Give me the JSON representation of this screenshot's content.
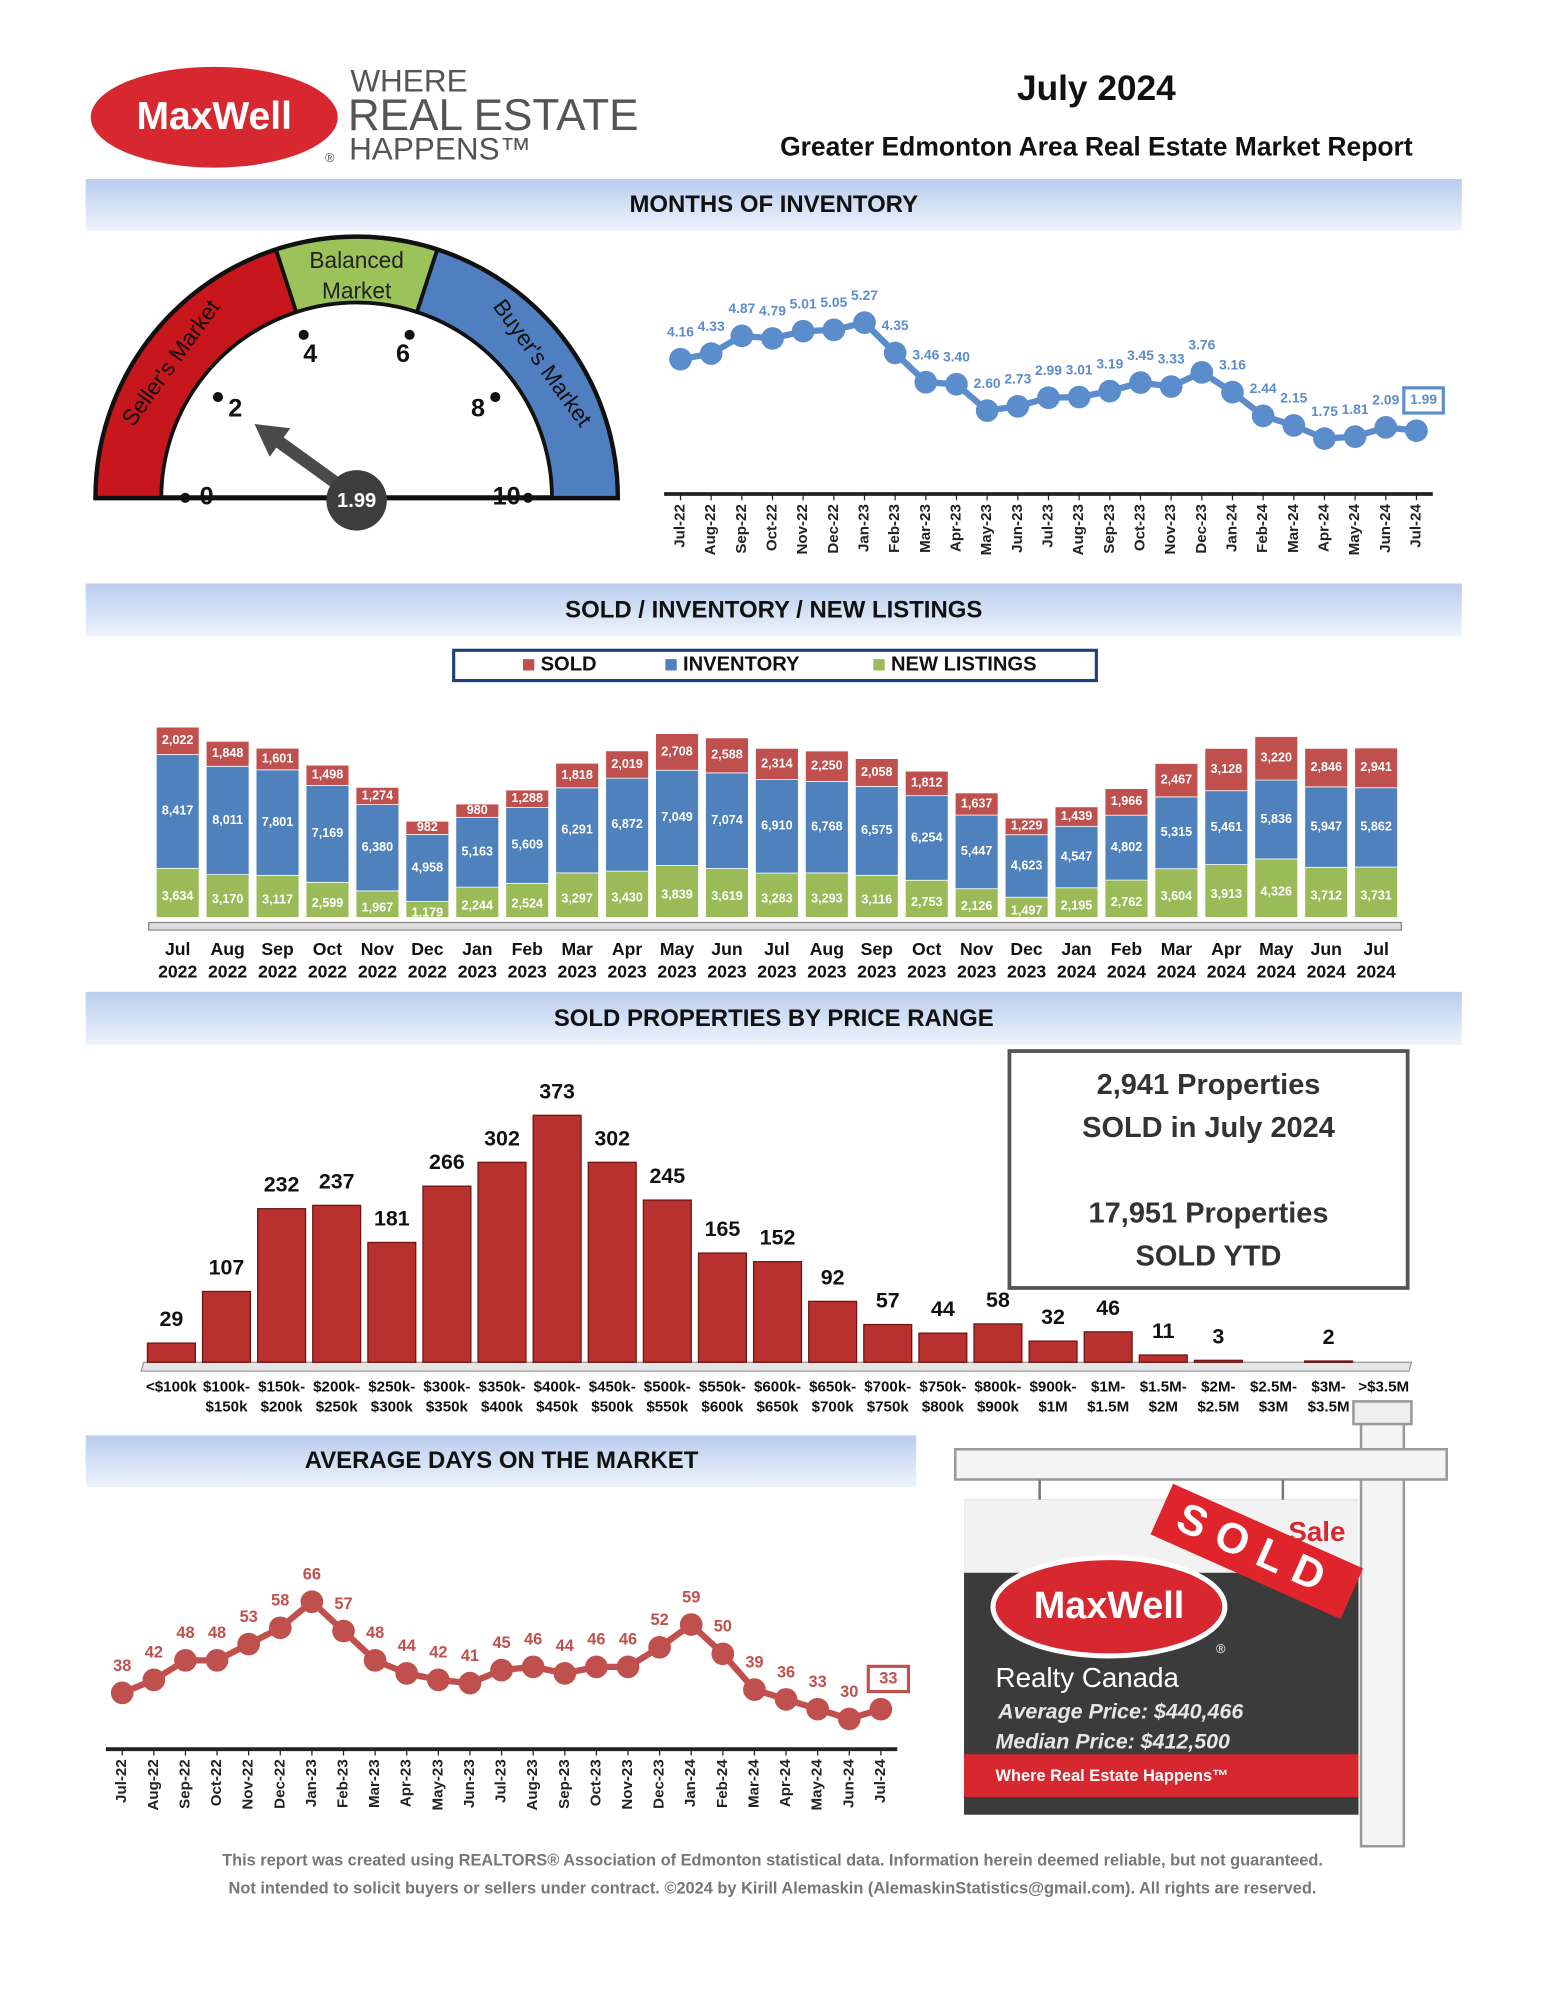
{
  "logo": {
    "brand": "MaxWell",
    "registered": "®",
    "line1": "WHERE",
    "line2": "REAL ESTATE",
    "line3": "HAPPENS™"
  },
  "header": {
    "date": "July 2024",
    "subtitle": "Greater Edmonton Area Real Estate Market Report"
  },
  "chart_data": [
    {
      "type": "gauge",
      "range": [
        0,
        10
      ],
      "value": 1.99,
      "ticks": [
        0,
        2,
        4,
        6,
        8,
        10
      ],
      "bands": [
        {
          "name": [
            "Seller's Market"
          ],
          "from": 0,
          "to": 4,
          "color": "#c8161d"
        },
        {
          "name": [
            "Balanced",
            "Market"
          ],
          "from": 4,
          "to": 6,
          "color": "#9bc35a"
        },
        {
          "name": [
            "Buyer's Market"
          ],
          "from": 6,
          "to": 10,
          "color": "#4f7fc1"
        }
      ]
    },
    {
      "type": "line",
      "title": "MONTHS OF INVENTORY",
      "color": "#5b8ccc",
      "highlight_last": true,
      "categories": [
        "Jul-22",
        "Aug-22",
        "Sep-22",
        "Oct-22",
        "Nov-22",
        "Dec-22",
        "Jan-23",
        "Feb-23",
        "Mar-23",
        "Apr-23",
        "May-23",
        "Jun-23",
        "Jul-23",
        "Aug-23",
        "Sep-23",
        "Oct-23",
        "Nov-23",
        "Dec-23",
        "Jan-24",
        "Feb-24",
        "Mar-24",
        "Apr-24",
        "May-24",
        "Jun-24",
        "Jul-24"
      ],
      "values": [
        4.16,
        4.33,
        4.87,
        4.79,
        5.01,
        5.05,
        5.27,
        4.35,
        3.46,
        3.4,
        2.6,
        2.73,
        2.99,
        3.01,
        3.19,
        3.45,
        3.33,
        3.76,
        3.16,
        2.44,
        2.15,
        1.75,
        1.81,
        2.09,
        1.99
      ],
      "value_labels": [
        "4.16",
        "4.33",
        "4.87",
        "4.79",
        "5.01",
        "5.05",
        "5.27",
        "4.35",
        "3.46",
        "3.40",
        "2.60",
        "2.73",
        "2.99",
        "3.01",
        "3.19",
        "3.45",
        "3.33",
        "3.76",
        "3.16",
        "2.44",
        "2.15",
        "1.75",
        "1.81",
        "2.09",
        "1.99"
      ]
    },
    {
      "type": "stacked_bar",
      "title": "SOLD / INVENTORY / NEW LISTINGS",
      "categories": [
        [
          "Jul",
          "2022"
        ],
        [
          "Aug",
          "2022"
        ],
        [
          "Sep",
          "2022"
        ],
        [
          "Oct",
          "2022"
        ],
        [
          "Nov",
          "2022"
        ],
        [
          "Dec",
          "2022"
        ],
        [
          "Jan",
          "2023"
        ],
        [
          "Feb",
          "2023"
        ],
        [
          "Mar",
          "2023"
        ],
        [
          "Apr",
          "2023"
        ],
        [
          "May",
          "2023"
        ],
        [
          "Jun",
          "2023"
        ],
        [
          "Jul",
          "2023"
        ],
        [
          "Aug",
          "2023"
        ],
        [
          "Sep",
          "2023"
        ],
        [
          "Oct",
          "2023"
        ],
        [
          "Nov",
          "2023"
        ],
        [
          "Dec",
          "2023"
        ],
        [
          "Jan",
          "2024"
        ],
        [
          "Feb",
          "2024"
        ],
        [
          "Mar",
          "2024"
        ],
        [
          "Apr",
          "2024"
        ],
        [
          "May",
          "2024"
        ],
        [
          "Jun",
          "2024"
        ],
        [
          "Jul",
          "2024"
        ]
      ],
      "series": [
        {
          "name": "SOLD",
          "color": "#c0504d",
          "values": [
            2022,
            1848,
            1601,
            1498,
            1274,
            982,
            980,
            1288,
            1818,
            2019,
            2708,
            2588,
            2314,
            2250,
            2058,
            1812,
            1637,
            1229,
            1439,
            1966,
            2467,
            3128,
            3220,
            2846,
            2941
          ],
          "value_labels": [
            "2,022",
            "1,848",
            "1,601",
            "1,498",
            "1,274",
            "982",
            "980",
            "1,288",
            "1,818",
            "2,019",
            "2,708",
            "2,588",
            "2,314",
            "2,250",
            "2,058",
            "1,812",
            "1,637",
            "1,229",
            "1,439",
            "1,966",
            "2,467",
            "3,128",
            "3,220",
            "2,846",
            "2,941"
          ]
        },
        {
          "name": "INVENTORY",
          "color": "#4f81bd",
          "values": [
            8417,
            8011,
            7801,
            7169,
            6380,
            4958,
            5163,
            5609,
            6291,
            6872,
            7049,
            7074,
            6910,
            6768,
            6575,
            6254,
            5447,
            4623,
            4547,
            4802,
            5315,
            5461,
            5836,
            5947,
            5862
          ],
          "value_labels": [
            "8,417",
            "8,011",
            "7,801",
            "7,169",
            "6,380",
            "4,958",
            "5,163",
            "5,609",
            "6,291",
            "6,872",
            "7,049",
            "7,074",
            "6,910",
            "6,768",
            "6,575",
            "6,254",
            "5,447",
            "4,623",
            "4,547",
            "4,802",
            "5,315",
            "5,461",
            "5,836",
            "5,947",
            "5,862"
          ]
        },
        {
          "name": "NEW LISTINGS",
          "color": "#9bbb59",
          "values": [
            3634,
            3170,
            3117,
            2599,
            1967,
            1179,
            2244,
            2524,
            3297,
            3430,
            3839,
            3619,
            3283,
            3293,
            3116,
            2753,
            2126,
            1497,
            2195,
            2762,
            3604,
            3913,
            4326,
            3712,
            3731
          ],
          "value_labels": [
            "3,634",
            "3,170",
            "3,117",
            "2,599",
            "1,967",
            "1,179",
            "2,244",
            "2,524",
            "3,297",
            "3,430",
            "3,839",
            "3,619",
            "3,283",
            "3,293",
            "3,116",
            "2,753",
            "2,126",
            "1,497",
            "2,195",
            "2,762",
            "3,604",
            "3,913",
            "4,326",
            "3,712",
            "3,731"
          ]
        }
      ]
    },
    {
      "type": "bar",
      "title": "SOLD PROPERTIES BY PRICE RANGE",
      "color": "#b8312f",
      "categories": [
        [
          "<$100k"
        ],
        [
          "$100k-",
          "$150k"
        ],
        [
          "$150k-",
          "$200k"
        ],
        [
          "$200k-",
          "$250k"
        ],
        [
          "$250k-",
          "$300k"
        ],
        [
          "$300k-",
          "$350k"
        ],
        [
          "$350k-",
          "$400k"
        ],
        [
          "$400k-",
          "$450k"
        ],
        [
          "$450k-",
          "$500k"
        ],
        [
          "$500k-",
          "$550k"
        ],
        [
          "$550k-",
          "$600k"
        ],
        [
          "$600k-",
          "$650k"
        ],
        [
          "$650k-",
          "$700k"
        ],
        [
          "$700k-",
          "$750k"
        ],
        [
          "$750k-",
          "$800k"
        ],
        [
          "$800k-",
          "$900k"
        ],
        [
          "$900k-",
          "$1M"
        ],
        [
          "$1M-",
          "$1.5M"
        ],
        [
          "$1.5M-",
          "$2M"
        ],
        [
          "$2M-",
          "$2.5M"
        ],
        [
          "$2.5M-",
          "$3M"
        ],
        [
          "$3M-",
          "$3.5M"
        ],
        [
          ">$3.5M"
        ]
      ],
      "values": [
        29,
        107,
        232,
        237,
        181,
        266,
        302,
        373,
        302,
        245,
        165,
        152,
        92,
        57,
        44,
        58,
        32,
        46,
        11,
        3,
        null,
        2,
        null
      ]
    },
    {
      "type": "line",
      "title": "AVERAGE DAYS ON THE MARKET",
      "color": "#c0504d",
      "highlight_last": true,
      "categories": [
        "Jul-22",
        "Aug-22",
        "Sep-22",
        "Oct-22",
        "Nov-22",
        "Dec-22",
        "Jan-23",
        "Feb-23",
        "Mar-23",
        "Apr-23",
        "May-23",
        "Jun-23",
        "Jul-23",
        "Aug-23",
        "Sep-23",
        "Oct-23",
        "Nov-23",
        "Dec-23",
        "Jan-24",
        "Feb-24",
        "Mar-24",
        "Apr-24",
        "May-24",
        "Jun-24",
        "Jul-24"
      ],
      "values": [
        38,
        42,
        48,
        48,
        53,
        58,
        66,
        57,
        48,
        44,
        42,
        41,
        45,
        46,
        44,
        46,
        46,
        52,
        59,
        50,
        39,
        36,
        33,
        30,
        33
      ]
    }
  ],
  "summary": {
    "line1": "2,941 Properties",
    "line2": "SOLD in July 2024",
    "line3": "17,951 Properties",
    "line4": "SOLD YTD"
  },
  "sign": {
    "banner": "SOLD",
    "sale": "Sale",
    "brand": "MaxWell",
    "registered": "®",
    "company": "Realty Canada",
    "average": "Average Price: $440,466",
    "median": "Median Price: $412,500",
    "slogan": "Where Real Estate Happens™"
  },
  "footer": [
    "This report was created using REALTORS® Association of Edmonton statistical data. Information herein deemed reliable, but not guaranteed.",
    "Not intended to solicit buyers or sellers under contract. ©2024 by Kirill Alemaskin (AlemaskinStatistics@gmail.com). All rights are reserved."
  ]
}
